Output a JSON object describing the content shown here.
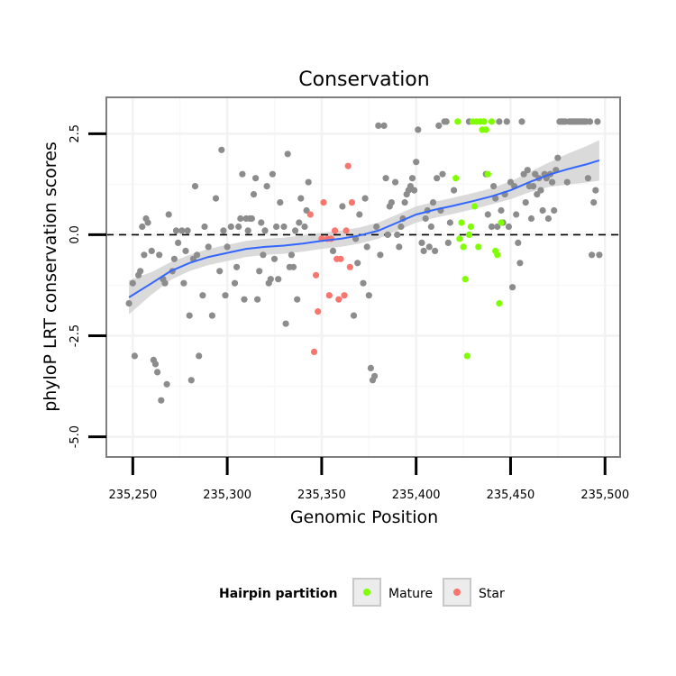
{
  "chart_data": {
    "type": "scatter",
    "title": "Conservation",
    "xlabel": "Genomic Position",
    "ylabel": "phyloP LRT conservation scores",
    "xlim": [
      235236,
      235508
    ],
    "ylim": [
      -5.5,
      3.4
    ],
    "x_ticks": [
      235250,
      235300,
      235350,
      235400,
      235450,
      235500
    ],
    "x_tick_labels": [
      "235,250",
      "235,300",
      "235,350",
      "235,400",
      "235,450",
      "235,500"
    ],
    "y_ticks": [
      -5.0,
      -2.5,
      0.0,
      2.5
    ],
    "y_tick_labels": [
      "-5.0",
      "-2.5",
      "0.0",
      "2.5"
    ],
    "reference_line": {
      "y": 0,
      "style": "dashed"
    },
    "legend": {
      "title": "Hairpin partition",
      "entries": [
        "Mature",
        "Star"
      ],
      "position": "bottom"
    },
    "colors": {
      "Other": "#8c8c8c",
      "Mature": "#7fff00",
      "Star": "#f8766d",
      "smooth": "#3366ff",
      "band": "#d3d3d3",
      "panel_border": "#7f7f7f",
      "grid": "#f2f2f2"
    },
    "series": [
      {
        "name": "Other",
        "points": [
          [
            235248,
            -1.7
          ],
          [
            235250,
            -1.2
          ],
          [
            235251,
            -3
          ],
          [
            235253,
            -1
          ],
          [
            235254,
            -0.9
          ],
          [
            235255,
            0.2
          ],
          [
            235256,
            -0.5
          ],
          [
            235257,
            0.4
          ],
          [
            235258,
            0.3
          ],
          [
            235260,
            -0.4
          ],
          [
            235261,
            -3.1
          ],
          [
            235262,
            -3.2
          ],
          [
            235263,
            -3.4
          ],
          [
            235264,
            -0.5
          ],
          [
            235265,
            -4.1
          ],
          [
            235266,
            -1.1
          ],
          [
            235267,
            -1.2
          ],
          [
            235268,
            -3.7
          ],
          [
            235269,
            0.5
          ],
          [
            235271,
            -0.9
          ],
          [
            235272,
            -0.6
          ],
          [
            235273,
            0.1
          ],
          [
            235274,
            -0.2
          ],
          [
            235276,
            0.1
          ],
          [
            235277,
            -1.2
          ],
          [
            235278,
            -0.4
          ],
          [
            235279,
            0.1
          ],
          [
            235280,
            -2
          ],
          [
            235281,
            -3.6
          ],
          [
            235282,
            -0.6
          ],
          [
            235283,
            1.2
          ],
          [
            235284,
            -0.5
          ],
          [
            235285,
            -3
          ],
          [
            235287,
            -1.5
          ],
          [
            235288,
            0.2
          ],
          [
            235290,
            -0.3
          ],
          [
            235292,
            -2
          ],
          [
            235294,
            0.9
          ],
          [
            235296,
            -0.9
          ],
          [
            235297,
            2.1
          ],
          [
            235298,
            0.1
          ],
          [
            235299,
            -1.5
          ],
          [
            235300,
            -0.3
          ],
          [
            235302,
            0.2
          ],
          [
            235304,
            -1.2
          ],
          [
            235305,
            -0.8
          ],
          [
            235306,
            0.2
          ],
          [
            235307,
            0.4
          ],
          [
            235308,
            1.5
          ],
          [
            235309,
            -1.6
          ],
          [
            235310,
            0.4
          ],
          [
            235311,
            0.1
          ],
          [
            235312,
            0.4
          ],
          [
            235313,
            0.4
          ],
          [
            235314,
            1
          ],
          [
            235315,
            1.4
          ],
          [
            235316,
            -1.6
          ],
          [
            235317,
            -0.9
          ],
          [
            235318,
            0.3
          ],
          [
            235319,
            -0.5
          ],
          [
            235320,
            0.1
          ],
          [
            235321,
            1.2
          ],
          [
            235322,
            -1.2
          ],
          [
            235323,
            -1.1
          ],
          [
            235324,
            1.5
          ],
          [
            235325,
            -0.6
          ],
          [
            235326,
            0.2
          ],
          [
            235327,
            -1.1
          ],
          [
            235328,
            0.8
          ],
          [
            235330,
            0.2
          ],
          [
            235331,
            -2.2
          ],
          [
            235332,
            2
          ],
          [
            235333,
            -0.8
          ],
          [
            235334,
            -0.5
          ],
          [
            235335,
            -0.8
          ],
          [
            235336,
            0.1
          ],
          [
            235337,
            -1.6
          ],
          [
            235338,
            0.3
          ],
          [
            235339,
            0.9
          ],
          [
            235341,
            0.2
          ],
          [
            235342,
            0.6
          ],
          [
            235343,
            1.3
          ],
          [
            235356,
            -0.4
          ],
          [
            235361,
            0.7
          ],
          [
            235367,
            -2
          ],
          [
            235368,
            -0.1
          ],
          [
            235369,
            -0.7
          ],
          [
            235370,
            0.5
          ],
          [
            235372,
            -1.2
          ],
          [
            235373,
            0.9
          ],
          [
            235374,
            -0.3
          ],
          [
            235375,
            -1.5
          ],
          [
            235376,
            -3.3
          ],
          [
            235377,
            -3.6
          ],
          [
            235378,
            -3.5
          ],
          [
            235379,
            0.2
          ],
          [
            235380,
            2.7
          ],
          [
            235381,
            -0.5
          ],
          [
            235383,
            2.7
          ],
          [
            235384,
            1.4
          ],
          [
            235385,
            0
          ],
          [
            235386,
            0.7
          ],
          [
            235387,
            0.8
          ],
          [
            235389,
            1.3
          ],
          [
            235390,
            0
          ],
          [
            235391,
            -0.3
          ],
          [
            235392,
            0.2
          ],
          [
            235393,
            0.4
          ],
          [
            235394,
            0.8
          ],
          [
            235395,
            1
          ],
          [
            235396,
            1.1
          ],
          [
            235397,
            1.2
          ],
          [
            235398,
            1.4
          ],
          [
            235399,
            1.1
          ],
          [
            235400,
            1.8
          ],
          [
            235401,
            2.6
          ],
          [
            235403,
            -0.2
          ],
          [
            235404,
            -0.4
          ],
          [
            235405,
            0.4
          ],
          [
            235406,
            0.6
          ],
          [
            235407,
            -0.3
          ],
          [
            235408,
            0.2
          ],
          [
            235409,
            0.8
          ],
          [
            235410,
            -0.4
          ],
          [
            235411,
            1.4
          ],
          [
            235412,
            2.7
          ],
          [
            235413,
            0.6
          ],
          [
            235414,
            1.5
          ],
          [
            235415,
            2.8
          ],
          [
            235416,
            2.8
          ],
          [
            235417,
            -0.2
          ],
          [
            235418,
            0.3
          ],
          [
            235420,
            1.1
          ],
          [
            235428,
            2.8
          ],
          [
            235437,
            1.5
          ],
          [
            235438,
            0.5
          ],
          [
            235440,
            0.2
          ],
          [
            235441,
            1.2
          ],
          [
            235442,
            0.9
          ],
          [
            235443,
            0.2
          ],
          [
            235444,
            2.8
          ],
          [
            235445,
            0.6
          ],
          [
            235446,
            0.3
          ],
          [
            235447,
            1
          ],
          [
            235448,
            2.8
          ],
          [
            235449,
            0.2
          ],
          [
            235450,
            1.3
          ],
          [
            235451,
            -1.3
          ],
          [
            235452,
            1.2
          ],
          [
            235453,
            0.5
          ],
          [
            235454,
            -0.2
          ],
          [
            235455,
            -0.7
          ],
          [
            235456,
            2.8
          ],
          [
            235457,
            1.5
          ],
          [
            235458,
            0.8
          ],
          [
            235459,
            1.6
          ],
          [
            235460,
            1.2
          ],
          [
            235461,
            0.4
          ],
          [
            235462,
            1.2
          ],
          [
            235463,
            1.5
          ],
          [
            235464,
            1
          ],
          [
            235465,
            1.4
          ],
          [
            235466,
            1.1
          ],
          [
            235467,
            0.6
          ],
          [
            235468,
            1.5
          ],
          [
            235469,
            1.4
          ],
          [
            235470,
            0.4
          ],
          [
            235471,
            1.5
          ],
          [
            235472,
            1.3
          ],
          [
            235473,
            0.6
          ],
          [
            235474,
            1.6
          ],
          [
            235475,
            1.9
          ],
          [
            235476,
            2.8
          ],
          [
            235477,
            2.8
          ],
          [
            235478,
            2.8
          ],
          [
            235479,
            2.8
          ],
          [
            235480,
            1.3
          ],
          [
            235481,
            2.8
          ],
          [
            235482,
            2.8
          ],
          [
            235483,
            2.8
          ],
          [
            235484,
            2.8
          ],
          [
            235485,
            2.8
          ],
          [
            235486,
            2.8
          ],
          [
            235487,
            2.8
          ],
          [
            235488,
            2.8
          ],
          [
            235489,
            2.8
          ],
          [
            235490,
            2.8
          ],
          [
            235491,
            1.4
          ],
          [
            235492,
            2.8
          ],
          [
            235493,
            -0.5
          ],
          [
            235494,
            0.8
          ],
          [
            235495,
            1.1
          ],
          [
            235496,
            2.8
          ],
          [
            235497,
            -0.5
          ]
        ]
      },
      {
        "name": "Star",
        "points": [
          [
            235344,
            0.5
          ],
          [
            235346,
            -2.9
          ],
          [
            235347,
            -1
          ],
          [
            235348,
            -1.9
          ],
          [
            235350,
            -0.1
          ],
          [
            235351,
            0.8
          ],
          [
            235353,
            -0.1
          ],
          [
            235354,
            -1.5
          ],
          [
            235355,
            -0.1
          ],
          [
            235357,
            0.1
          ],
          [
            235358,
            -0.6
          ],
          [
            235359,
            -1.6
          ],
          [
            235360,
            -0.6
          ],
          [
            235362,
            -1.5
          ],
          [
            235363,
            0.1
          ],
          [
            235364,
            1.7
          ],
          [
            235365,
            -0.8
          ],
          [
            235366,
            0.8
          ]
        ]
      },
      {
        "name": "Mature",
        "points": [
          [
            235421,
            1.4
          ],
          [
            235422,
            2.8
          ],
          [
            235423,
            -0.1
          ],
          [
            235424,
            0.3
          ],
          [
            235425,
            -0.3
          ],
          [
            235426,
            -1.1
          ],
          [
            235427,
            -3
          ],
          [
            235428,
            0
          ],
          [
            235429,
            0.2
          ],
          [
            235430,
            2.8
          ],
          [
            235431,
            0.7
          ],
          [
            235432,
            2.8
          ],
          [
            235433,
            -0.3
          ],
          [
            235434,
            2.8
          ],
          [
            235435,
            2.6
          ],
          [
            235436,
            2.8
          ],
          [
            235437,
            2.6
          ],
          [
            235438,
            1.5
          ],
          [
            235440,
            2.8
          ],
          [
            235442,
            -0.4
          ],
          [
            235443,
            -0.5
          ],
          [
            235444,
            -1.7
          ],
          [
            235445,
            0.3
          ]
        ]
      }
    ],
    "smooth": [
      [
        235248,
        -1.55
      ],
      [
        235260,
        -1.2
      ],
      [
        235270,
        -0.9
      ],
      [
        235280,
        -0.7
      ],
      [
        235290,
        -0.55
      ],
      [
        235300,
        -0.45
      ],
      [
        235310,
        -0.35
      ],
      [
        235320,
        -0.3
      ],
      [
        235330,
        -0.27
      ],
      [
        235340,
        -0.22
      ],
      [
        235350,
        -0.15
      ],
      [
        235360,
        -0.1
      ],
      [
        235370,
        -0.02
      ],
      [
        235380,
        0.1
      ],
      [
        235390,
        0.3
      ],
      [
        235400,
        0.5
      ],
      [
        235410,
        0.62
      ],
      [
        235420,
        0.72
      ],
      [
        235430,
        0.83
      ],
      [
        235440,
        0.95
      ],
      [
        235450,
        1.1
      ],
      [
        235460,
        1.3
      ],
      [
        235470,
        1.48
      ],
      [
        235480,
        1.62
      ],
      [
        235490,
        1.74
      ],
      [
        235497,
        1.84
      ]
    ],
    "smooth_se": [
      [
        235248,
        0.42
      ],
      [
        235260,
        0.28
      ],
      [
        235270,
        0.22
      ],
      [
        235280,
        0.2
      ],
      [
        235290,
        0.2
      ],
      [
        235300,
        0.2
      ],
      [
        235310,
        0.2
      ],
      [
        235320,
        0.2
      ],
      [
        235330,
        0.2
      ],
      [
        235340,
        0.2
      ],
      [
        235350,
        0.2
      ],
      [
        235360,
        0.2
      ],
      [
        235370,
        0.2
      ],
      [
        235380,
        0.2
      ],
      [
        235390,
        0.2
      ],
      [
        235400,
        0.2
      ],
      [
        235410,
        0.2
      ],
      [
        235420,
        0.2
      ],
      [
        235430,
        0.2
      ],
      [
        235440,
        0.2
      ],
      [
        235450,
        0.22
      ],
      [
        235460,
        0.25
      ],
      [
        235470,
        0.3
      ],
      [
        235480,
        0.38
      ],
      [
        235490,
        0.45
      ],
      [
        235497,
        0.5
      ]
    ]
  }
}
